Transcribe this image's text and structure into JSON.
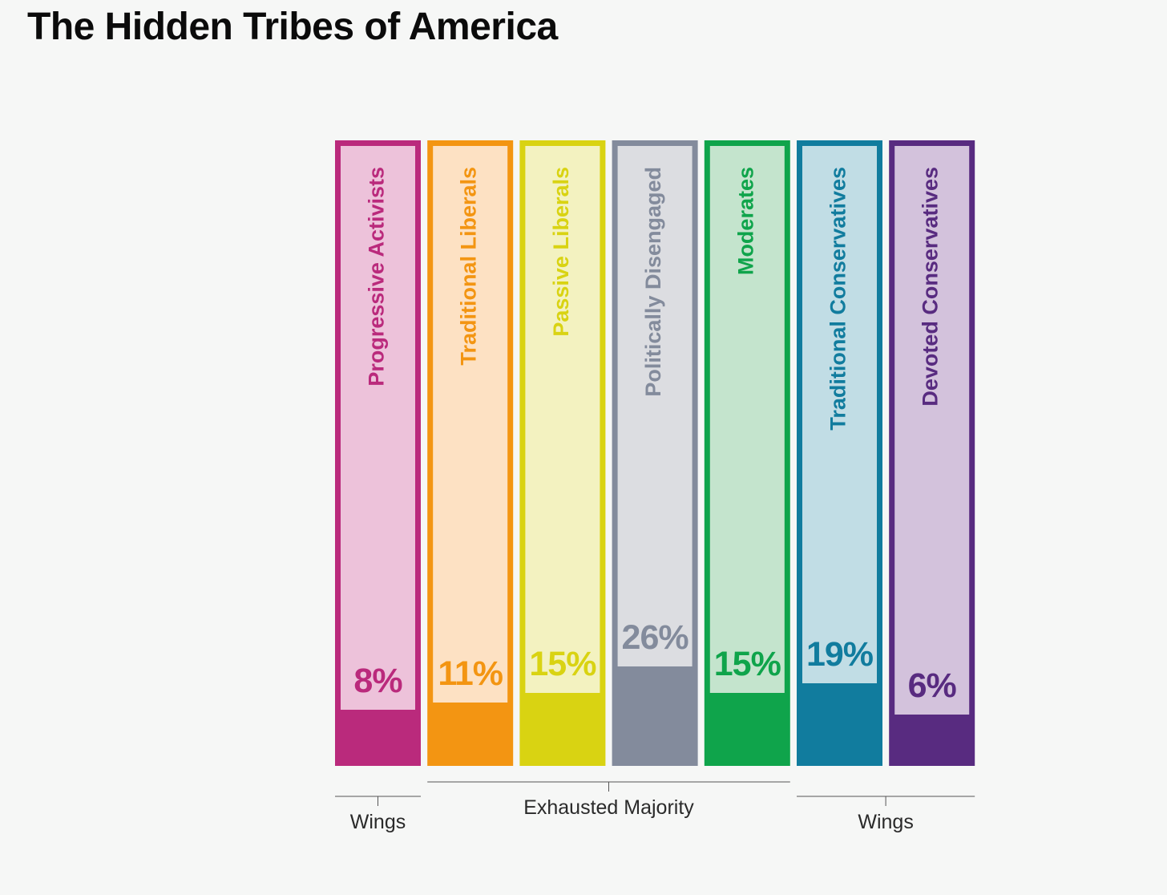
{
  "chart_data": {
    "type": "bar",
    "title": "The Hidden Tribes of America",
    "unit": "%",
    "categories": [
      "Progressive Activists",
      "Traditional Liberals",
      "Passive Liberals",
      "Politically Disengaged",
      "Moderates",
      "Traditional Conservatives",
      "Devoted Conservatives"
    ],
    "values": [
      8,
      11,
      15,
      26,
      15,
      19,
      6
    ],
    "value_labels": [
      "8%",
      "11%",
      "15%",
      "26%",
      "15%",
      "19%",
      "6%"
    ],
    "ylim": [
      0,
      100
    ],
    "colors": [
      "#ba2a7c",
      "#f39512",
      "#d9d312",
      "#838b9c",
      "#0fa44b",
      "#117c9e",
      "#582b80"
    ],
    "light_colors": [
      "#edc2da",
      "#fde1c3",
      "#f3f2c0",
      "#dcdde1",
      "#c4e4cd",
      "#c1dde5",
      "#d3c2dc"
    ],
    "groups": [
      {
        "label": "Wings",
        "from": 0,
        "to": 0
      },
      {
        "label": "Exhausted Majority",
        "from": 1,
        "to": 4
      },
      {
        "label": "Wings",
        "from": 5,
        "to": 6
      }
    ],
    "xlabel": "",
    "ylabel": "",
    "legend": "none",
    "grid": false
  }
}
